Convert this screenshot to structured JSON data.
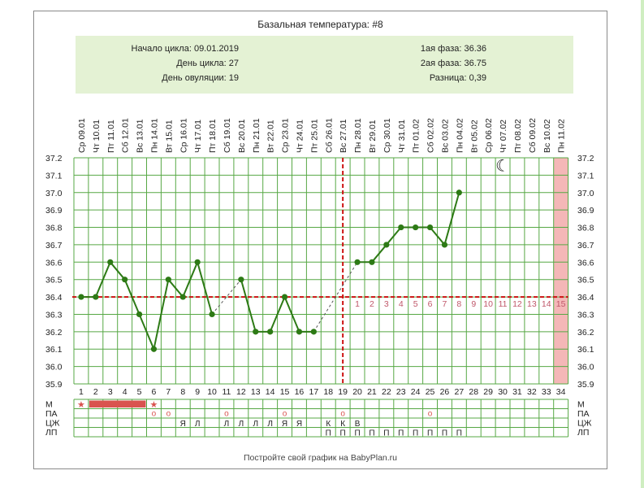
{
  "title": "Базальная температура: #8",
  "info": {
    "cycle_start": "Начало цикла: 09.01.2019",
    "cycle_day": "День цикла: 27",
    "ovulation_day": "День овуляции: 19",
    "phase1": "1ая фаза: 36.36",
    "phase2": "2ая фаза: 36.75",
    "difference": "Разница: 0,39"
  },
  "footer": "Постройте свой график на BabyPlan.ru",
  "colors": {
    "line": "#2d7a15",
    "grid": "#57a845",
    "coverline": "#cc1111",
    "highlight": "#f4b7b7",
    "menstruation": "#d9534f",
    "phase_numbers": "#c0586a"
  },
  "chart_data": {
    "type": "line",
    "title": "Базальная температура: #8",
    "dates": [
      "Ср 09.01",
      "Чт 10.01",
      "Пт 11.01",
      "Сб 12.01",
      "Вс 13.01",
      "Пн 14.01",
      "Вт 15.01",
      "Ср 16.01",
      "Чт 17.01",
      "Пт 18.01",
      "Сб 19.01",
      "Вс 20.01",
      "Пн 21.01",
      "Вт 22.01",
      "Ср 23.01",
      "Чт 24.01",
      "Пт 25.01",
      "Сб 26.01",
      "Вс 27.01",
      "Пн 28.01",
      "Вт 29.01",
      "Ср 30.01",
      "Чт 31.01",
      "Пт 01.02",
      "Сб 02.02",
      "Вс 03.02",
      "Пн 04.02",
      "Вт 05.02",
      "Ср 06.02",
      "Чт 07.02",
      "Пт 08.02",
      "Сб 09.02",
      "Вс 10.02",
      "Пн 11.02"
    ],
    "days": [
      1,
      2,
      3,
      4,
      5,
      6,
      7,
      8,
      9,
      10,
      11,
      12,
      13,
      14,
      15,
      16,
      17,
      18,
      19,
      20,
      21,
      22,
      23,
      24,
      25,
      26,
      27,
      28,
      29,
      30,
      31,
      32,
      33,
      34
    ],
    "temperatures": [
      36.4,
      36.4,
      36.6,
      36.5,
      36.3,
      36.1,
      36.5,
      36.4,
      36.6,
      36.3,
      null,
      36.5,
      36.2,
      36.2,
      36.4,
      36.2,
      36.2,
      null,
      null,
      36.6,
      36.6,
      36.7,
      36.8,
      36.8,
      36.8,
      36.7,
      37.0,
      null,
      null,
      null,
      null,
      null,
      null,
      null
    ],
    "ylim": [
      35.9,
      37.2
    ],
    "yticks": [
      "37.2",
      "37.1",
      "37.0",
      "36.9",
      "36.8",
      "36.7",
      "36.6",
      "36.5",
      "36.4",
      "36.3",
      "36.2",
      "36.1",
      "36.0",
      "35.9"
    ],
    "coverline": 36.4,
    "ovulation_day": 19,
    "highlight_day": 34,
    "phase2_numbers": [
      "1",
      "2",
      "3",
      "4",
      "5",
      "6",
      "7",
      "8",
      "9",
      "10",
      "11",
      "12",
      "13",
      "14",
      "15"
    ],
    "moon_day": 30,
    "moon_temp": 37.15,
    "moon_symbol": "☾",
    "grid": true
  },
  "table": {
    "row_labels": [
      "М",
      "ПА",
      "ЦЖ",
      "ЛП"
    ],
    "menstruation": {
      "stars": [
        1,
        6
      ],
      "bar_days": [
        2,
        3,
        4,
        5
      ],
      "star_symbol": "★"
    },
    "pa_days": [
      6,
      7,
      11,
      15,
      19,
      25
    ],
    "pa_symbol": "o",
    "cm": [
      {
        "day": 8,
        "text": "Я"
      },
      {
        "day": 9,
        "text": "Л"
      },
      {
        "day": 11,
        "text": "Л"
      },
      {
        "day": 12,
        "text": "Л"
      },
      {
        "day": 13,
        "text": "Л"
      },
      {
        "day": 14,
        "text": "Л"
      },
      {
        "day": 15,
        "text": "Я"
      },
      {
        "day": 16,
        "text": "Я"
      },
      {
        "day": 18,
        "text": "К"
      },
      {
        "day": 19,
        "text": "К"
      },
      {
        "day": 20,
        "text": "В"
      }
    ],
    "lp_days": [
      18,
      19,
      20,
      21,
      22,
      23,
      24,
      25,
      26,
      27
    ],
    "lp_symbol": "П"
  }
}
